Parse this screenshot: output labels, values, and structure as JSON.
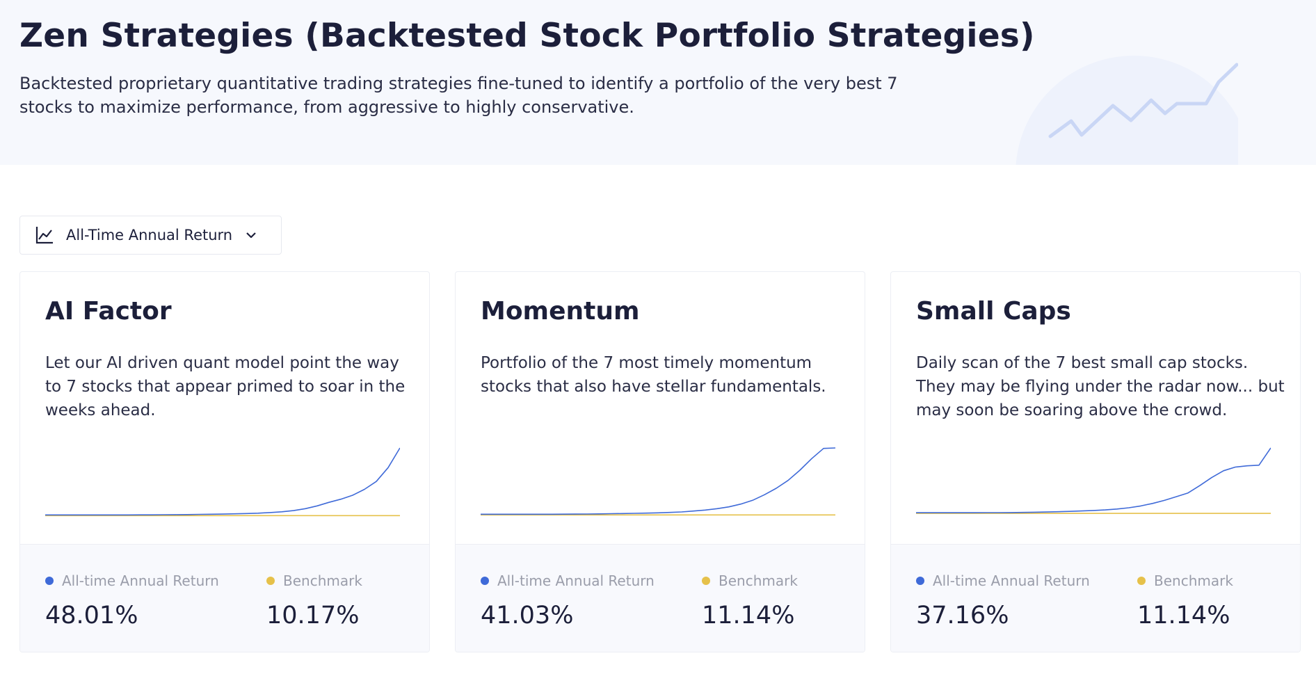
{
  "header": {
    "title": "Zen Strategies (Backtested Stock Portfolio Strategies)",
    "description": "Backtested proprietary quantitative trading strategies fine-tuned to identify a portfolio of the very best 7 stocks to maximize performance, from aggressive to highly conservative."
  },
  "metric_select": {
    "icon": "line-chart-icon",
    "selected": "All-Time Annual Return",
    "chevron_icon": "chevron-down-icon"
  },
  "colors": {
    "strategy_line": "#3f6ad8",
    "benchmark_line": "#e6c14a",
    "accent_art": "#c9d6f5"
  },
  "cards": [
    {
      "title": "AI Factor",
      "description": "Let our AI driven quant model point the way to 7 stocks that appear primed to soar in the weeks ahead.",
      "return_label": "All-time Annual Return",
      "return_value": "48.01%",
      "benchmark_label": "Benchmark",
      "benchmark_value": "10.17%",
      "chart_data": {
        "type": "line",
        "series": [
          {
            "values": [
              1,
              1,
              1,
              1,
              1,
              1,
              1,
              1.01,
              1.02,
              1.03,
              1.05,
              1.07,
              1.1,
              1.14,
              1.18,
              1.22,
              1.28,
              1.35,
              1.45,
              1.6,
              1.8,
              2.1,
              2.6,
              3.3,
              4.2,
              5.0,
              6.0,
              7.5,
              9.5,
              13.0,
              18.0
            ]
          },
          {
            "values": [
              1,
              1,
              1,
              1,
              1,
              1,
              1,
              1,
              1,
              1,
              1,
              1,
              1,
              1,
              1,
              1,
              1,
              1,
              1,
              1,
              1,
              1,
              1,
              1,
              1,
              1,
              1,
              1,
              1,
              1,
              1
            ]
          }
        ]
      }
    },
    {
      "title": "Momentum",
      "description": "Portfolio of the 7 most timely momentum stocks that also have stellar fundamentals.",
      "return_label": "All-time Annual Return",
      "return_value": "41.03%",
      "benchmark_label": "Benchmark",
      "benchmark_value": "11.14%",
      "chart_data": {
        "type": "line",
        "series": [
          {
            "values": [
              1,
              1,
              1,
              1,
              1,
              1,
              1.01,
              1.02,
              1.03,
              1.05,
              1.08,
              1.12,
              1.16,
              1.2,
              1.25,
              1.3,
              1.4,
              1.5,
              1.7,
              1.9,
              2.2,
              2.6,
              3.2,
              4.0,
              5.2,
              6.6,
              8.3,
              10.5,
              13.0,
              15.2,
              15.3
            ]
          },
          {
            "values": [
              1,
              1,
              1,
              1,
              1,
              1,
              1,
              1,
              1,
              1,
              1,
              1,
              1,
              1,
              1,
              1,
              1,
              1,
              1,
              1,
              1,
              1,
              1,
              1,
              1,
              1,
              1,
              1,
              1,
              1,
              1
            ]
          }
        ]
      }
    },
    {
      "title": "Small Caps",
      "description": "Daily scan of the 7 best small cap stocks. They may be flying under the radar now... but may soon be soaring above the crowd.",
      "return_label": "All-time Annual Return",
      "return_value": "37.16%",
      "benchmark_label": "Benchmark",
      "benchmark_value": "11.14%",
      "chart_data": {
        "type": "line",
        "series": [
          {
            "values": [
              1,
              1,
              1,
              1,
              1,
              1,
              1.01,
              1.02,
              1.03,
              1.05,
              1.08,
              1.12,
              1.16,
              1.22,
              1.28,
              1.36,
              1.46,
              1.6,
              1.8,
              2.1,
              2.5,
              3.0,
              3.6,
              4.2,
              5.4,
              6.7,
              7.8,
              8.4,
              8.6,
              8.7,
              11.5
            ]
          },
          {
            "values": [
              1,
              1,
              1,
              1,
              1,
              1,
              1,
              1,
              1,
              1,
              1,
              1,
              1,
              1,
              1,
              1,
              1,
              1,
              1,
              1,
              1,
              1,
              1,
              1,
              1,
              1,
              1,
              1,
              1,
              1,
              1
            ]
          }
        ]
      }
    }
  ]
}
